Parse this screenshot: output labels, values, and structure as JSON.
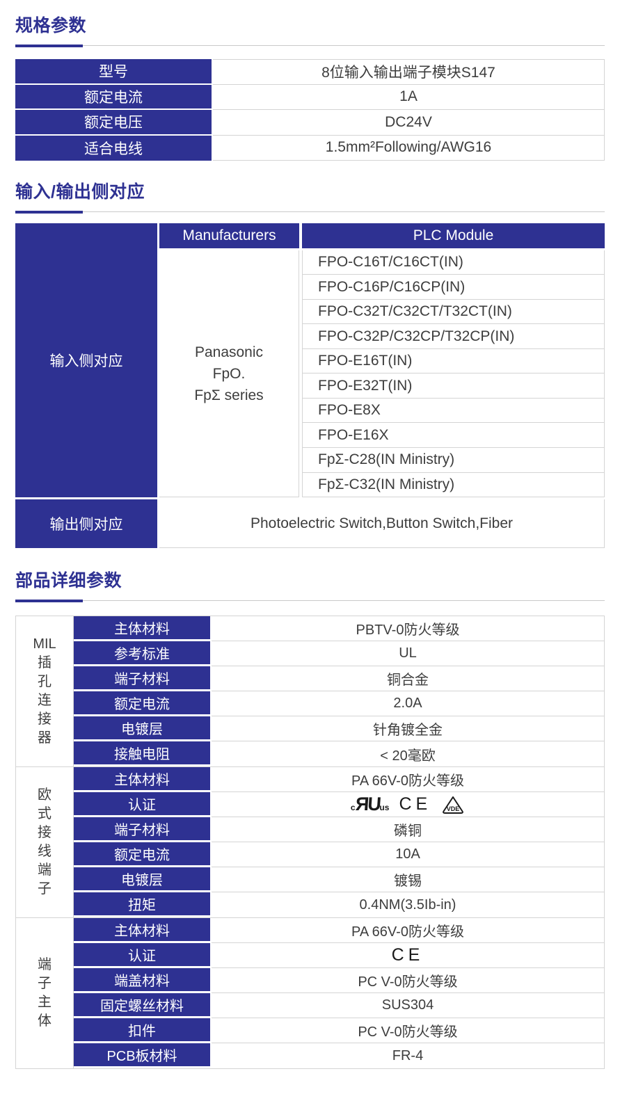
{
  "palette": {
    "accent_blue": "#2e3192",
    "border_gray": "#d4d4d4",
    "text_dark": "#3d3d3d",
    "cell_text_white": "#ffffff"
  },
  "sections": {
    "spec": {
      "title": "规格参数",
      "rows": [
        {
          "label": "型号",
          "value": "8位输入输出端子模块S147"
        },
        {
          "label": "额定电流",
          "value": "1A"
        },
        {
          "label": "额定电压",
          "value": "DC24V"
        },
        {
          "label": "适合电线",
          "value": "1.5mm²Following/AWG16"
        }
      ]
    },
    "io": {
      "title": "输入/输出侧对应",
      "col_headers": [
        "Manufacturers",
        "PLC Module"
      ],
      "input_label": "输入侧对应",
      "manufacturer_lines": [
        "Panasonic",
        "FpO.",
        "FpΣ series"
      ],
      "plc_modules": [
        "FPO-C16T/C16CT(IN)",
        "FPO-C16P/C16CP(IN)",
        "FPO-C32T/C32CT/T32CT(IN)",
        "FPO-C32P/C32CP/T32CP(IN)",
        "FPO-E16T(IN)",
        "FPO-E32T(IN)",
        "FPO-E8X",
        "FPO-E16X",
        "FpΣ-C28(IN Ministry)",
        "FpΣ-C32(IN Ministry)"
      ],
      "output_label": "输出侧对应",
      "output_value": "Photoelectric Switch,Button Switch,Fiber"
    },
    "parts": {
      "title": "部品详细参数",
      "groups": [
        {
          "name": "MIL插孔连接器",
          "name_lines": [
            "MIL",
            "插",
            "孔",
            "连",
            "接",
            "器"
          ],
          "rows": [
            {
              "label": "主体材料",
              "value": "PBTV-0防火等级"
            },
            {
              "label": "参考标准",
              "value": "UL"
            },
            {
              "label": "端子材料",
              "value": "铜合金"
            },
            {
              "label": "额定电流",
              "value": "2.0A"
            },
            {
              "label": "电镀层",
              "value": "针角镀全金"
            },
            {
              "label": "接触电阻",
              "value": "< 20毫欧"
            }
          ]
        },
        {
          "name": "欧式接线端子",
          "name_lines": [
            "欧",
            "式",
            "接",
            "线",
            "端",
            "子"
          ],
          "rows": [
            {
              "label": "主体材料",
              "value": "PA 66V-0防火等级"
            },
            {
              "label": "认证",
              "value": "",
              "certs": [
                "ul-recognized-mark",
                "ce-mark",
                "vde-mark"
              ]
            },
            {
              "label": "端子材料",
              "value": "磷铜"
            },
            {
              "label": "额定电流",
              "value": "10A"
            },
            {
              "label": "电镀层",
              "value": "镀锡"
            },
            {
              "label": "扭矩",
              "value": "0.4NM(3.5Ib-in)"
            }
          ]
        },
        {
          "name": "端子主体",
          "name_lines": [
            "端",
            "子",
            "主",
            "体"
          ],
          "rows": [
            {
              "label": "主体材料",
              "value": "PA 66V-0防火等级"
            },
            {
              "label": "认证",
              "value": "",
              "certs": [
                "ce-mark"
              ]
            },
            {
              "label": "端盖材料",
              "value": "PC V-0防火等级"
            },
            {
              "label": "固定螺丝材料",
              "value": "SUS304"
            },
            {
              "label": "扣件",
              "value": "PC V-0防火等级"
            },
            {
              "label": "PCB板材料",
              "value": "FR-4"
            }
          ]
        }
      ]
    }
  },
  "cert_marks": {
    "ul_prefix": "c",
    "ul_letters": "ЯU",
    "ul_suffix": "us",
    "ce": "CE",
    "vde": "VDE"
  }
}
